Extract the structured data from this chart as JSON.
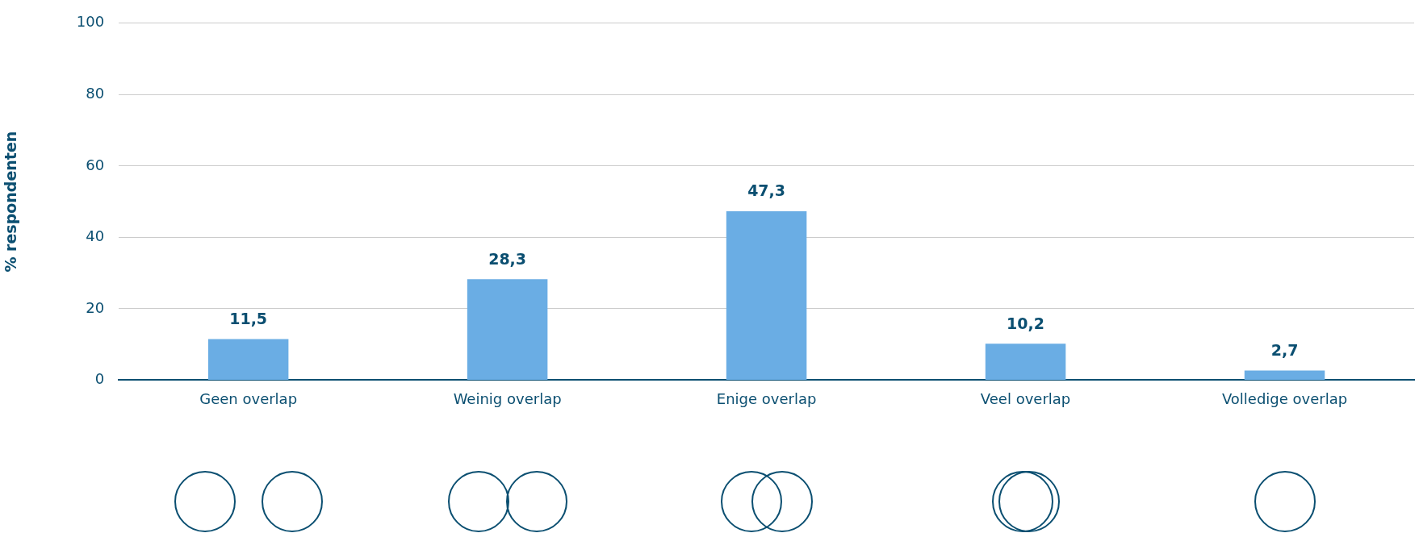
{
  "chart_data": {
    "type": "bar",
    "ylabel": "% respondenten",
    "categories": [
      "Geen overlap",
      "Weinig overlap",
      "Enige overlap",
      "Veel overlap",
      "Volledige overlap"
    ],
    "values": [
      11.5,
      28.3,
      47.3,
      10.2,
      2.7
    ],
    "value_labels": [
      "11,5",
      "28,3",
      "47,3",
      "10,2",
      "2,7"
    ],
    "color": "#6aade4",
    "ylim": [
      0,
      100
    ],
    "yticks": [
      0,
      20,
      40,
      60,
      80,
      100
    ],
    "grid": "y",
    "legend": false
  }
}
